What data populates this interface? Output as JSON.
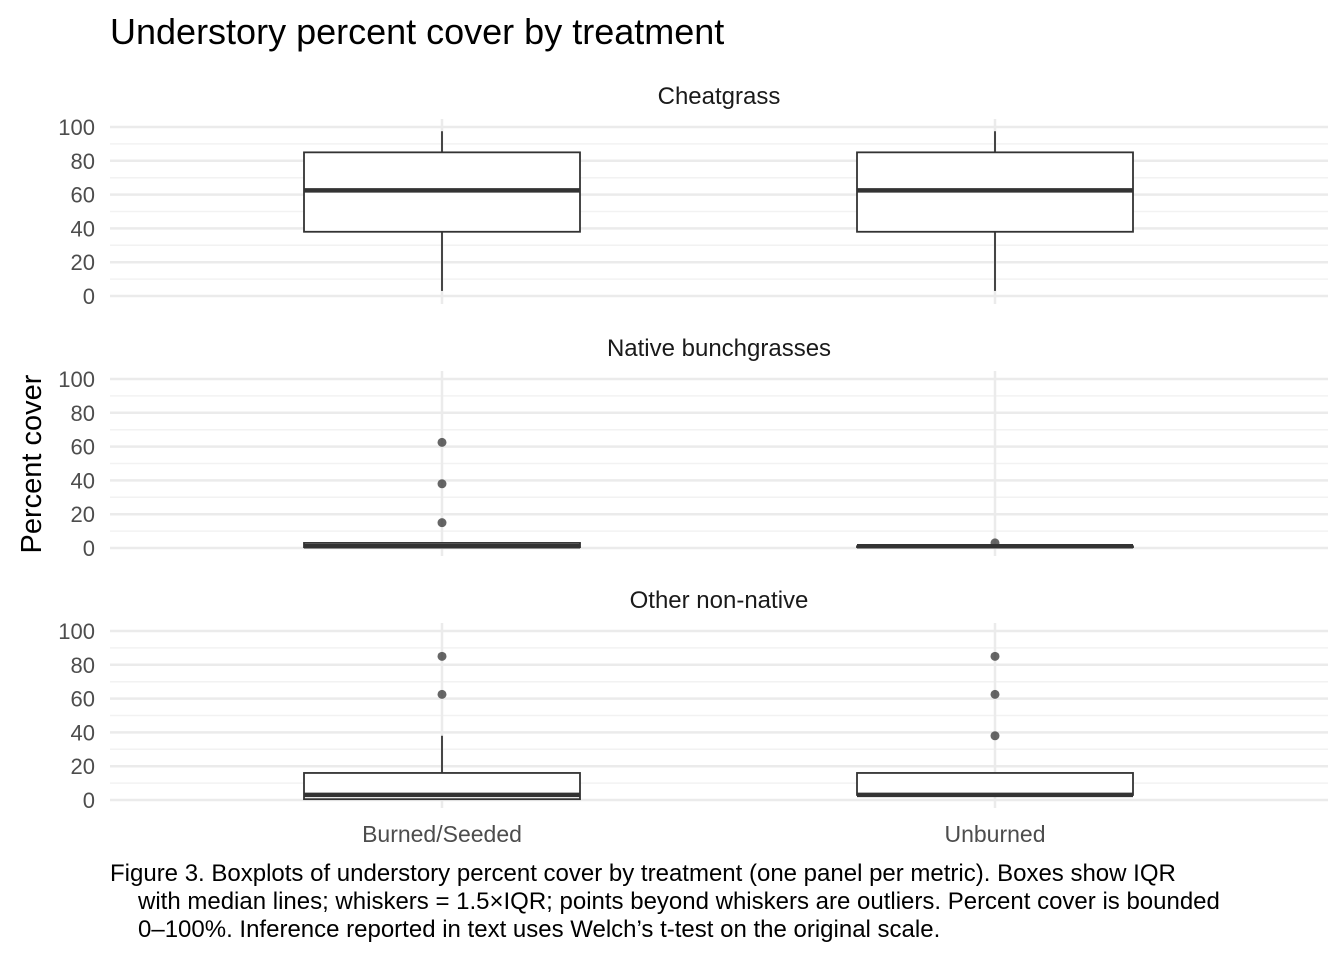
{
  "caption": {
    "line1": "Figure 3. Boxplots of understory percent cover by treatment (one panel per metric). Boxes show IQR",
    "line2": "with median lines; whiskers = 1.5×IQR; points beyond whiskers are outliers. Percent cover is bounded",
    "line3": "0–100%. Inference reported in text uses Welch’s t-test on the original scale."
  },
  "chart_data": {
    "type": "box",
    "title": "Understory percent cover by treatment",
    "xlabel": "",
    "ylabel": "Percent cover",
    "categories": [
      "Burned/Seeded",
      "Unburned"
    ],
    "ylim": [
      0,
      100
    ],
    "yticks": [
      0,
      20,
      40,
      60,
      80,
      100
    ],
    "grid": true,
    "facets": [
      {
        "name": "Cheatgrass",
        "boxes": [
          {
            "category": "Burned/Seeded",
            "min": 3,
            "q1": 38,
            "median": 62.5,
            "q3": 85,
            "max": 97.5,
            "outliers": []
          },
          {
            "category": "Unburned",
            "min": 3,
            "q1": 38,
            "median": 62.5,
            "q3": 85,
            "max": 97.5,
            "outliers": []
          }
        ]
      },
      {
        "name": "Native bunchgrasses",
        "boxes": [
          {
            "category": "Burned/Seeded",
            "min": 0,
            "q1": 0.5,
            "median": 1,
            "q3": 3,
            "max": 3,
            "outliers": [
              15,
              38,
              62.5
            ]
          },
          {
            "category": "Unburned",
            "min": 0,
            "q1": 0.5,
            "median": 1,
            "q3": 1,
            "max": 1,
            "outliers": [
              3
            ]
          }
        ]
      },
      {
        "name": "Other non-native",
        "boxes": [
          {
            "category": "Burned/Seeded",
            "min": 0.5,
            "q1": 0.5,
            "median": 3,
            "q3": 16,
            "max": 38,
            "outliers": [
              62.5,
              85
            ]
          },
          {
            "category": "Unburned",
            "min": 3,
            "q1": 3,
            "median": 3,
            "q3": 16,
            "max": 16,
            "outliers": [
              38,
              62.5,
              85
            ]
          }
        ]
      }
    ]
  }
}
